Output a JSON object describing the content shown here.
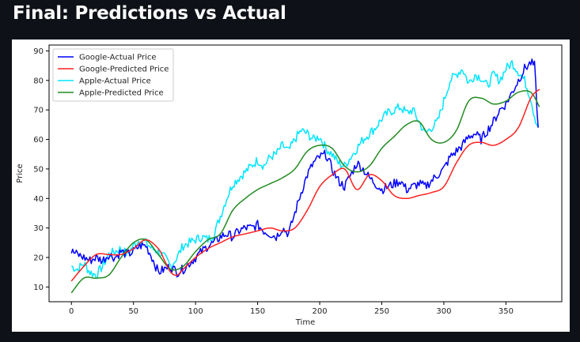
{
  "title": "Final: Predictions vs Actual",
  "chart_data": {
    "type": "line",
    "xlabel": "Time",
    "ylabel": "Price",
    "xlim": [
      -18,
      395
    ],
    "ylim": [
      5,
      92
    ],
    "xticks": [
      0,
      50,
      100,
      150,
      200,
      250,
      300,
      350
    ],
    "yticks": [
      10,
      20,
      30,
      40,
      50,
      60,
      70,
      80,
      90
    ],
    "grid": false,
    "legend_position": "top-left",
    "series": [
      {
        "name": "Google-Actual Price",
        "color": "#0000ff",
        "x": [
          0,
          5,
          10,
          15,
          20,
          25,
          30,
          35,
          40,
          45,
          50,
          55,
          60,
          65,
          70,
          75,
          80,
          85,
          90,
          95,
          100,
          105,
          110,
          115,
          120,
          125,
          130,
          135,
          140,
          145,
          150,
          155,
          160,
          165,
          170,
          175,
          180,
          185,
          190,
          195,
          200,
          205,
          210,
          215,
          220,
          225,
          230,
          235,
          240,
          245,
          250,
          255,
          260,
          265,
          270,
          275,
          280,
          285,
          290,
          295,
          300,
          305,
          310,
          315,
          320,
          325,
          330,
          335,
          340,
          345,
          350,
          355,
          360,
          365,
          370,
          373,
          376
        ],
        "y": [
          22,
          21,
          20,
          19,
          20,
          19,
          21,
          20,
          22,
          21,
          22,
          24,
          24,
          20,
          15,
          16,
          17,
          15,
          16,
          18,
          20,
          22,
          24,
          25,
          27,
          28,
          27,
          29,
          30,
          30,
          31,
          29,
          28,
          27,
          30,
          28,
          35,
          42,
          48,
          52,
          54,
          55,
          50,
          46,
          44,
          48,
          52,
          50,
          47,
          45,
          43,
          44,
          45,
          46,
          43,
          44,
          45,
          44,
          46,
          48,
          50,
          54,
          56,
          58,
          61,
          62,
          60,
          63,
          66,
          70,
          72,
          76,
          80,
          84,
          86,
          85,
          64
        ],
        "values": [
          22,
          21,
          20,
          19,
          20,
          19,
          21,
          20,
          22,
          21,
          22,
          24,
          24,
          20,
          15,
          16,
          17,
          15,
          16,
          18,
          20,
          22,
          24,
          25,
          27,
          28,
          27,
          29,
          30,
          30,
          31,
          29,
          28,
          27,
          30,
          28,
          35,
          42,
          48,
          52,
          54,
          55,
          50,
          46,
          44,
          48,
          52,
          50,
          47,
          45,
          43,
          44,
          45,
          46,
          43,
          44,
          45,
          44,
          46,
          48,
          50,
          54,
          56,
          58,
          61,
          62,
          60,
          63,
          66,
          70,
          72,
          76,
          80,
          84,
          86,
          85,
          64
        ]
      },
      {
        "name": "Google-Predicted Price",
        "color": "#ff2020",
        "x": [
          0,
          10,
          20,
          30,
          40,
          50,
          60,
          70,
          75,
          80,
          85,
          90,
          100,
          110,
          120,
          130,
          140,
          150,
          160,
          170,
          180,
          190,
          200,
          210,
          220,
          230,
          240,
          250,
          260,
          270,
          280,
          290,
          300,
          310,
          320,
          330,
          340,
          350,
          360,
          370,
          377
        ],
        "y": [
          12,
          17,
          21,
          21,
          21,
          23,
          26,
          23,
          19,
          15,
          14,
          16,
          20,
          23,
          25,
          27,
          28,
          29,
          30,
          29,
          30,
          36,
          44,
          48,
          50,
          43,
          48,
          46,
          41,
          40,
          41,
          42,
          44,
          52,
          58,
          59,
          58,
          60,
          64,
          74,
          77
        ],
        "values": [
          12,
          17,
          21,
          21,
          21,
          23,
          26,
          23,
          19,
          15,
          14,
          16,
          20,
          23,
          25,
          27,
          28,
          29,
          30,
          29,
          30,
          36,
          44,
          48,
          50,
          43,
          48,
          46,
          41,
          40,
          41,
          42,
          44,
          52,
          58,
          59,
          58,
          60,
          64,
          74,
          77
        ]
      },
      {
        "name": "Apple-Actual Price",
        "color": "#00e5ff",
        "x": [
          0,
          5,
          10,
          15,
          20,
          25,
          30,
          35,
          40,
          45,
          50,
          55,
          60,
          65,
          70,
          75,
          80,
          85,
          90,
          95,
          100,
          105,
          110,
          115,
          120,
          125,
          130,
          135,
          140,
          145,
          150,
          155,
          160,
          165,
          170,
          175,
          180,
          185,
          190,
          195,
          200,
          205,
          210,
          215,
          220,
          225,
          230,
          235,
          240,
          245,
          250,
          255,
          260,
          265,
          270,
          275,
          280,
          285,
          290,
          295,
          300,
          305,
          310,
          315,
          320,
          325,
          330,
          335,
          340,
          345,
          350,
          355,
          360,
          365,
          370,
          373,
          376
        ],
        "y": [
          17,
          16,
          18,
          15,
          14,
          17,
          21,
          22,
          23,
          21,
          24,
          26,
          25,
          23,
          22,
          20,
          17,
          20,
          24,
          25,
          26,
          27,
          26,
          28,
          34,
          40,
          45,
          47,
          49,
          51,
          53,
          51,
          54,
          55,
          58,
          56,
          60,
          63,
          62,
          60,
          61,
          57,
          55,
          52,
          51,
          54,
          57,
          60,
          62,
          64,
          67,
          69,
          70,
          71,
          69,
          70,
          66,
          62,
          64,
          66,
          73,
          80,
          82,
          84,
          79,
          82,
          81,
          78,
          82,
          80,
          84,
          86,
          83,
          80,
          74,
          68,
          64
        ],
        "values": [
          17,
          16,
          18,
          15,
          14,
          17,
          21,
          22,
          23,
          21,
          24,
          26,
          25,
          23,
          22,
          20,
          17,
          20,
          24,
          25,
          26,
          27,
          26,
          28,
          34,
          40,
          45,
          47,
          49,
          51,
          53,
          51,
          54,
          55,
          58,
          56,
          60,
          63,
          62,
          60,
          61,
          57,
          55,
          52,
          51,
          54,
          57,
          60,
          62,
          64,
          67,
          69,
          70,
          71,
          69,
          70,
          66,
          62,
          64,
          66,
          73,
          80,
          82,
          84,
          79,
          82,
          81,
          78,
          82,
          80,
          84,
          86,
          83,
          80,
          74,
          68,
          64
        ]
      },
      {
        "name": "Apple-Predicted Price",
        "color": "#228b22",
        "x": [
          0,
          10,
          20,
          30,
          40,
          50,
          60,
          70,
          80,
          90,
          100,
          110,
          120,
          130,
          140,
          150,
          160,
          170,
          180,
          190,
          200,
          210,
          220,
          230,
          240,
          250,
          260,
          270,
          280,
          290,
          300,
          310,
          320,
          330,
          340,
          350,
          360,
          370,
          377
        ],
        "y": [
          8,
          13,
          13,
          14,
          20,
          25,
          26,
          21,
          16,
          17,
          22,
          26,
          28,
          36,
          40,
          43,
          45,
          47,
          50,
          56,
          58,
          57,
          51,
          49,
          51,
          57,
          61,
          65,
          66,
          60,
          59,
          63,
          73,
          74,
          72,
          73,
          76,
          76,
          71
        ],
        "values": [
          8,
          13,
          13,
          14,
          20,
          25,
          26,
          21,
          16,
          17,
          22,
          26,
          28,
          36,
          40,
          43,
          45,
          47,
          50,
          56,
          58,
          57,
          51,
          49,
          51,
          57,
          61,
          65,
          66,
          60,
          59,
          63,
          73,
          74,
          72,
          73,
          76,
          76,
          71
        ]
      }
    ]
  }
}
